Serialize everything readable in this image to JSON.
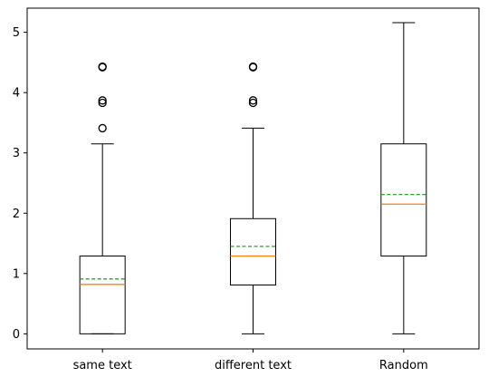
{
  "chart_data": {
    "type": "box",
    "title": "",
    "xlabel": "",
    "ylabel": "",
    "categories": [
      "same text",
      "different text",
      "Random"
    ],
    "ylim": [
      -0.25,
      5.4
    ],
    "yticks": [
      0,
      1,
      2,
      3,
      4,
      5
    ],
    "ytick_labels": [
      "0",
      "1",
      "2",
      "3",
      "4",
      "5"
    ],
    "grid": false,
    "series": [
      {
        "whisker_low": 0,
        "q1": 0,
        "median": 0.82,
        "mean": 0.91,
        "q3": 1.29,
        "whisker_high": 3.15,
        "outliers": [
          3.41,
          3.83,
          3.87,
          4.42,
          4.43
        ]
      },
      {
        "whisker_low": 0,
        "q1": 0.81,
        "median": 1.29,
        "mean": 1.45,
        "q3": 1.91,
        "whisker_high": 3.41,
        "outliers": [
          3.83,
          3.87,
          4.42,
          4.43
        ]
      },
      {
        "whisker_low": 0,
        "q1": 1.29,
        "median": 2.15,
        "mean": 2.31,
        "q3": 3.15,
        "whisker_high": 5.16,
        "outliers": []
      }
    ],
    "colors": {
      "box": "#000000",
      "median": "#ff7f0e",
      "mean": "#2ca02c",
      "outlier": "#000000"
    }
  }
}
